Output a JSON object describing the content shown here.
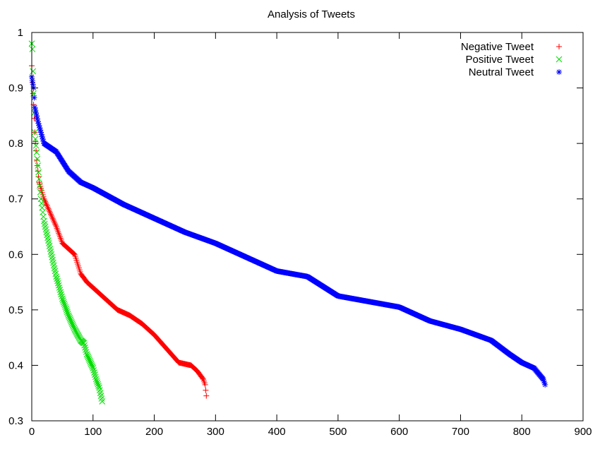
{
  "chart_data": {
    "type": "scatter",
    "title": "Analysis of Tweets",
    "xlabel": "",
    "ylabel": "",
    "xlim": [
      0,
      900
    ],
    "ylim": [
      0.3,
      1
    ],
    "xticks": [
      0,
      100,
      200,
      300,
      400,
      500,
      600,
      700,
      800,
      900
    ],
    "yticks": [
      0.3,
      0.4,
      0.5,
      0.6,
      0.7,
      0.8,
      0.9,
      1
    ],
    "ytick_labels": [
      "0.3",
      "0.4",
      "0.5",
      "0.6",
      "0.7",
      "0.8",
      "0.9",
      "1"
    ],
    "grid": false,
    "legend_position": "top-right",
    "series": [
      {
        "name": "Negative Tweet",
        "marker": "plus",
        "color": "#ff0000",
        "count": 285,
        "curve": [
          [
            0,
            0.94
          ],
          [
            1,
            0.91
          ],
          [
            3,
            0.87
          ],
          [
            5,
            0.82
          ],
          [
            8,
            0.77
          ],
          [
            12,
            0.73
          ],
          [
            20,
            0.7
          ],
          [
            30,
            0.675
          ],
          [
            40,
            0.65
          ],
          [
            50,
            0.62
          ],
          [
            60,
            0.61
          ],
          [
            70,
            0.6
          ],
          [
            80,
            0.565
          ],
          [
            90,
            0.55
          ],
          [
            100,
            0.54
          ],
          [
            120,
            0.52
          ],
          [
            140,
            0.5
          ],
          [
            160,
            0.49
          ],
          [
            180,
            0.475
          ],
          [
            200,
            0.455
          ],
          [
            220,
            0.43
          ],
          [
            240,
            0.405
          ],
          [
            260,
            0.4
          ],
          [
            270,
            0.39
          ],
          [
            280,
            0.375
          ],
          [
            283,
            0.365
          ],
          [
            285,
            0.345
          ]
        ]
      },
      {
        "name": "Positive Tweet",
        "marker": "cross",
        "color": "#00dd00",
        "count": 115,
        "curve": [
          [
            0,
            0.98
          ],
          [
            1,
            0.97
          ],
          [
            2,
            0.93
          ],
          [
            3,
            0.89
          ],
          [
            5,
            0.82
          ],
          [
            10,
            0.76
          ],
          [
            15,
            0.7
          ],
          [
            20,
            0.66
          ],
          [
            30,
            0.61
          ],
          [
            40,
            0.56
          ],
          [
            50,
            0.52
          ],
          [
            60,
            0.49
          ],
          [
            70,
            0.465
          ],
          [
            80,
            0.445
          ],
          [
            85,
            0.44
          ],
          [
            90,
            0.42
          ],
          [
            100,
            0.395
          ],
          [
            105,
            0.375
          ],
          [
            110,
            0.36
          ],
          [
            115,
            0.335
          ]
        ]
      },
      {
        "name": "Neutral Tweet",
        "marker": "star",
        "color": "#0000ff",
        "count": 838,
        "curve": [
          [
            0,
            0.92
          ],
          [
            3,
            0.9
          ],
          [
            5,
            0.865
          ],
          [
            10,
            0.84
          ],
          [
            15,
            0.82
          ],
          [
            20,
            0.8
          ],
          [
            40,
            0.785
          ],
          [
            60,
            0.75
          ],
          [
            80,
            0.73
          ],
          [
            100,
            0.72
          ],
          [
            150,
            0.69
          ],
          [
            200,
            0.665
          ],
          [
            250,
            0.64
          ],
          [
            300,
            0.62
          ],
          [
            350,
            0.595
          ],
          [
            400,
            0.57
          ],
          [
            450,
            0.56
          ],
          [
            500,
            0.525
          ],
          [
            550,
            0.515
          ],
          [
            600,
            0.505
          ],
          [
            650,
            0.48
          ],
          [
            700,
            0.465
          ],
          [
            750,
            0.445
          ],
          [
            780,
            0.42
          ],
          [
            800,
            0.405
          ],
          [
            820,
            0.395
          ],
          [
            835,
            0.375
          ],
          [
            838,
            0.365
          ]
        ]
      }
    ]
  }
}
